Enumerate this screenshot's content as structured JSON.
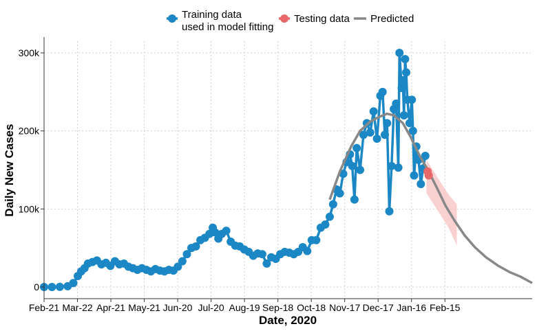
{
  "chart_data": {
    "type": "line",
    "xlabel": "Date, 2020",
    "ylabel": "Daily New Cases",
    "x_ticks": [
      "Feb-21",
      "Mar-22",
      "Apr-21",
      "May-21",
      "Jun-20",
      "Jul-20",
      "Aug-19",
      "Sep-18",
      "Oct-18",
      "Nov-17",
      "Dec-17",
      "Jan-16",
      "Feb-15"
    ],
    "y_ticks": [
      {
        "value": 0,
        "label": "0"
      },
      {
        "value": 100000,
        "label": "100k"
      },
      {
        "value": 200000,
        "label": "200k"
      },
      {
        "value": 300000,
        "label": "300k"
      }
    ],
    "ylim": [
      -15000,
      315000
    ],
    "xlim": [
      "2020-02-21",
      "2021-04-30"
    ],
    "grid": true,
    "legend_position": "top",
    "series": [
      {
        "name": "Training data\nused in model fitting",
        "role": "training",
        "style": "line+points",
        "color": "#1b87c4",
        "points": [
          [
            "2020-02-21",
            0
          ],
          [
            "2020-02-28",
            0
          ],
          [
            "2020-03-06",
            200
          ],
          [
            "2020-03-13",
            900
          ],
          [
            "2020-03-18",
            5000
          ],
          [
            "2020-03-22",
            14000
          ],
          [
            "2020-03-25",
            20000
          ],
          [
            "2020-03-28",
            24000
          ],
          [
            "2020-03-31",
            30000
          ],
          [
            "2020-04-04",
            32000
          ],
          [
            "2020-04-08",
            34000
          ],
          [
            "2020-04-12",
            29000
          ],
          [
            "2020-04-16",
            31000
          ],
          [
            "2020-04-20",
            27000
          ],
          [
            "2020-04-24",
            33000
          ],
          [
            "2020-04-28",
            29000
          ],
          [
            "2020-05-02",
            30000
          ],
          [
            "2020-05-06",
            26000
          ],
          [
            "2020-05-10",
            24000
          ],
          [
            "2020-05-14",
            22000
          ],
          [
            "2020-05-18",
            24000
          ],
          [
            "2020-05-22",
            22000
          ],
          [
            "2020-05-26",
            20000
          ],
          [
            "2020-05-30",
            23000
          ],
          [
            "2020-06-03",
            21000
          ],
          [
            "2020-06-07",
            20000
          ],
          [
            "2020-06-11",
            22000
          ],
          [
            "2020-06-15",
            21000
          ],
          [
            "2020-06-19",
            26000
          ],
          [
            "2020-06-23",
            33000
          ],
          [
            "2020-06-27",
            42000
          ],
          [
            "2020-07-01",
            50000
          ],
          [
            "2020-07-05",
            52000
          ],
          [
            "2020-07-09",
            60000
          ],
          [
            "2020-07-13",
            63000
          ],
          [
            "2020-07-17",
            68000
          ],
          [
            "2020-07-20",
            76000
          ],
          [
            "2020-07-22",
            70000
          ],
          [
            "2020-07-25",
            62000
          ],
          [
            "2020-07-28",
            68000
          ],
          [
            "2020-08-01",
            72000
          ],
          [
            "2020-08-05",
            58000
          ],
          [
            "2020-08-09",
            53000
          ],
          [
            "2020-08-13",
            52000
          ],
          [
            "2020-08-17",
            48000
          ],
          [
            "2020-08-21",
            45000
          ],
          [
            "2020-08-25",
            40000
          ],
          [
            "2020-08-29",
            43000
          ],
          [
            "2020-09-02",
            42000
          ],
          [
            "2020-09-06",
            30000
          ],
          [
            "2020-09-10",
            38000
          ],
          [
            "2020-09-14",
            36000
          ],
          [
            "2020-09-18",
            42000
          ],
          [
            "2020-09-22",
            45000
          ],
          [
            "2020-09-26",
            44000
          ],
          [
            "2020-09-30",
            42000
          ],
          [
            "2020-10-04",
            45000
          ],
          [
            "2020-10-08",
            51000
          ],
          [
            "2020-10-12",
            46000
          ],
          [
            "2020-10-16",
            60000
          ],
          [
            "2020-10-20",
            60000
          ],
          [
            "2020-10-24",
            76000
          ],
          [
            "2020-10-28",
            80000
          ],
          [
            "2020-11-01",
            90000
          ],
          [
            "2020-11-04",
            106000
          ],
          [
            "2020-11-07",
            125000
          ],
          [
            "2020-11-10",
            120000
          ],
          [
            "2020-11-13",
            145000
          ],
          [
            "2020-11-16",
            160000
          ],
          [
            "2020-11-19",
            170000
          ],
          [
            "2020-11-21",
            155000
          ],
          [
            "2020-11-23",
            112000
          ],
          [
            "2020-11-25",
            178000
          ],
          [
            "2020-11-28",
            150000
          ],
          [
            "2020-12-01",
            195000
          ],
          [
            "2020-12-04",
            210000
          ],
          [
            "2020-12-07",
            198000
          ],
          [
            "2020-12-10",
            225000
          ],
          [
            "2020-12-13",
            190000
          ],
          [
            "2020-12-16",
            245000
          ],
          [
            "2020-12-18",
            250000
          ],
          [
            "2020-12-20",
            195000
          ],
          [
            "2020-12-22",
            210000
          ],
          [
            "2020-12-24",
            97000
          ],
          [
            "2020-12-26",
            155000
          ],
          [
            "2020-12-28",
            228000
          ],
          [
            "2020-12-30",
            235000
          ],
          [
            "2021-01-01",
            153000
          ],
          [
            "2021-01-02",
            300000
          ],
          [
            "2021-01-04",
            255000
          ],
          [
            "2021-01-05",
            265000
          ],
          [
            "2021-01-06",
            220000
          ],
          [
            "2021-01-07",
            292000
          ],
          [
            "2021-01-08",
            275000
          ],
          [
            "2021-01-09",
            240000
          ],
          [
            "2021-01-11",
            210000
          ],
          [
            "2021-01-13",
            240000
          ],
          [
            "2021-01-14",
            200000
          ],
          [
            "2021-01-15",
            143000
          ],
          [
            "2021-01-17",
            180000
          ],
          [
            "2021-01-19",
            163000
          ],
          [
            "2021-01-21",
            132000
          ],
          [
            "2021-01-23",
            152000
          ],
          [
            "2021-01-25",
            168000
          ]
        ]
      },
      {
        "name": "Testing data",
        "role": "testing",
        "style": "points",
        "color": "#e8696a",
        "points": [
          [
            "2021-01-27",
            148000
          ],
          [
            "2021-01-28",
            143000
          ]
        ]
      },
      {
        "name": "Predicted",
        "role": "predicted",
        "style": "line",
        "color": "#888888",
        "points": [
          [
            "2020-11-01",
            112000
          ],
          [
            "2020-11-10",
            148000
          ],
          [
            "2020-11-20",
            180000
          ],
          [
            "2020-11-28",
            200000
          ],
          [
            "2020-12-07",
            212000
          ],
          [
            "2020-12-15",
            218000
          ],
          [
            "2020-12-22",
            222000
          ],
          [
            "2020-12-28",
            220000
          ],
          [
            "2021-01-05",
            210000
          ],
          [
            "2021-01-12",
            192000
          ],
          [
            "2021-01-20",
            168000
          ],
          [
            "2021-01-28",
            148000
          ],
          [
            "2021-02-05",
            125000
          ],
          [
            "2021-02-12",
            104000
          ],
          [
            "2021-02-20",
            85000
          ],
          [
            "2021-03-01",
            66000
          ],
          [
            "2021-03-10",
            51000
          ],
          [
            "2021-03-20",
            38000
          ],
          [
            "2021-03-31",
            27000
          ],
          [
            "2021-04-10",
            19000
          ],
          [
            "2021-04-20",
            13000
          ],
          [
            "2021-04-30",
            5000
          ]
        ],
        "band_color": "#f9c9c9",
        "band": [
          [
            "2021-01-26",
            120000,
            163000
          ],
          [
            "2021-02-05",
            98000,
            140000
          ],
          [
            "2021-02-15",
            75000,
            118000
          ],
          [
            "2021-02-22",
            53000,
            106000
          ]
        ]
      }
    ]
  }
}
